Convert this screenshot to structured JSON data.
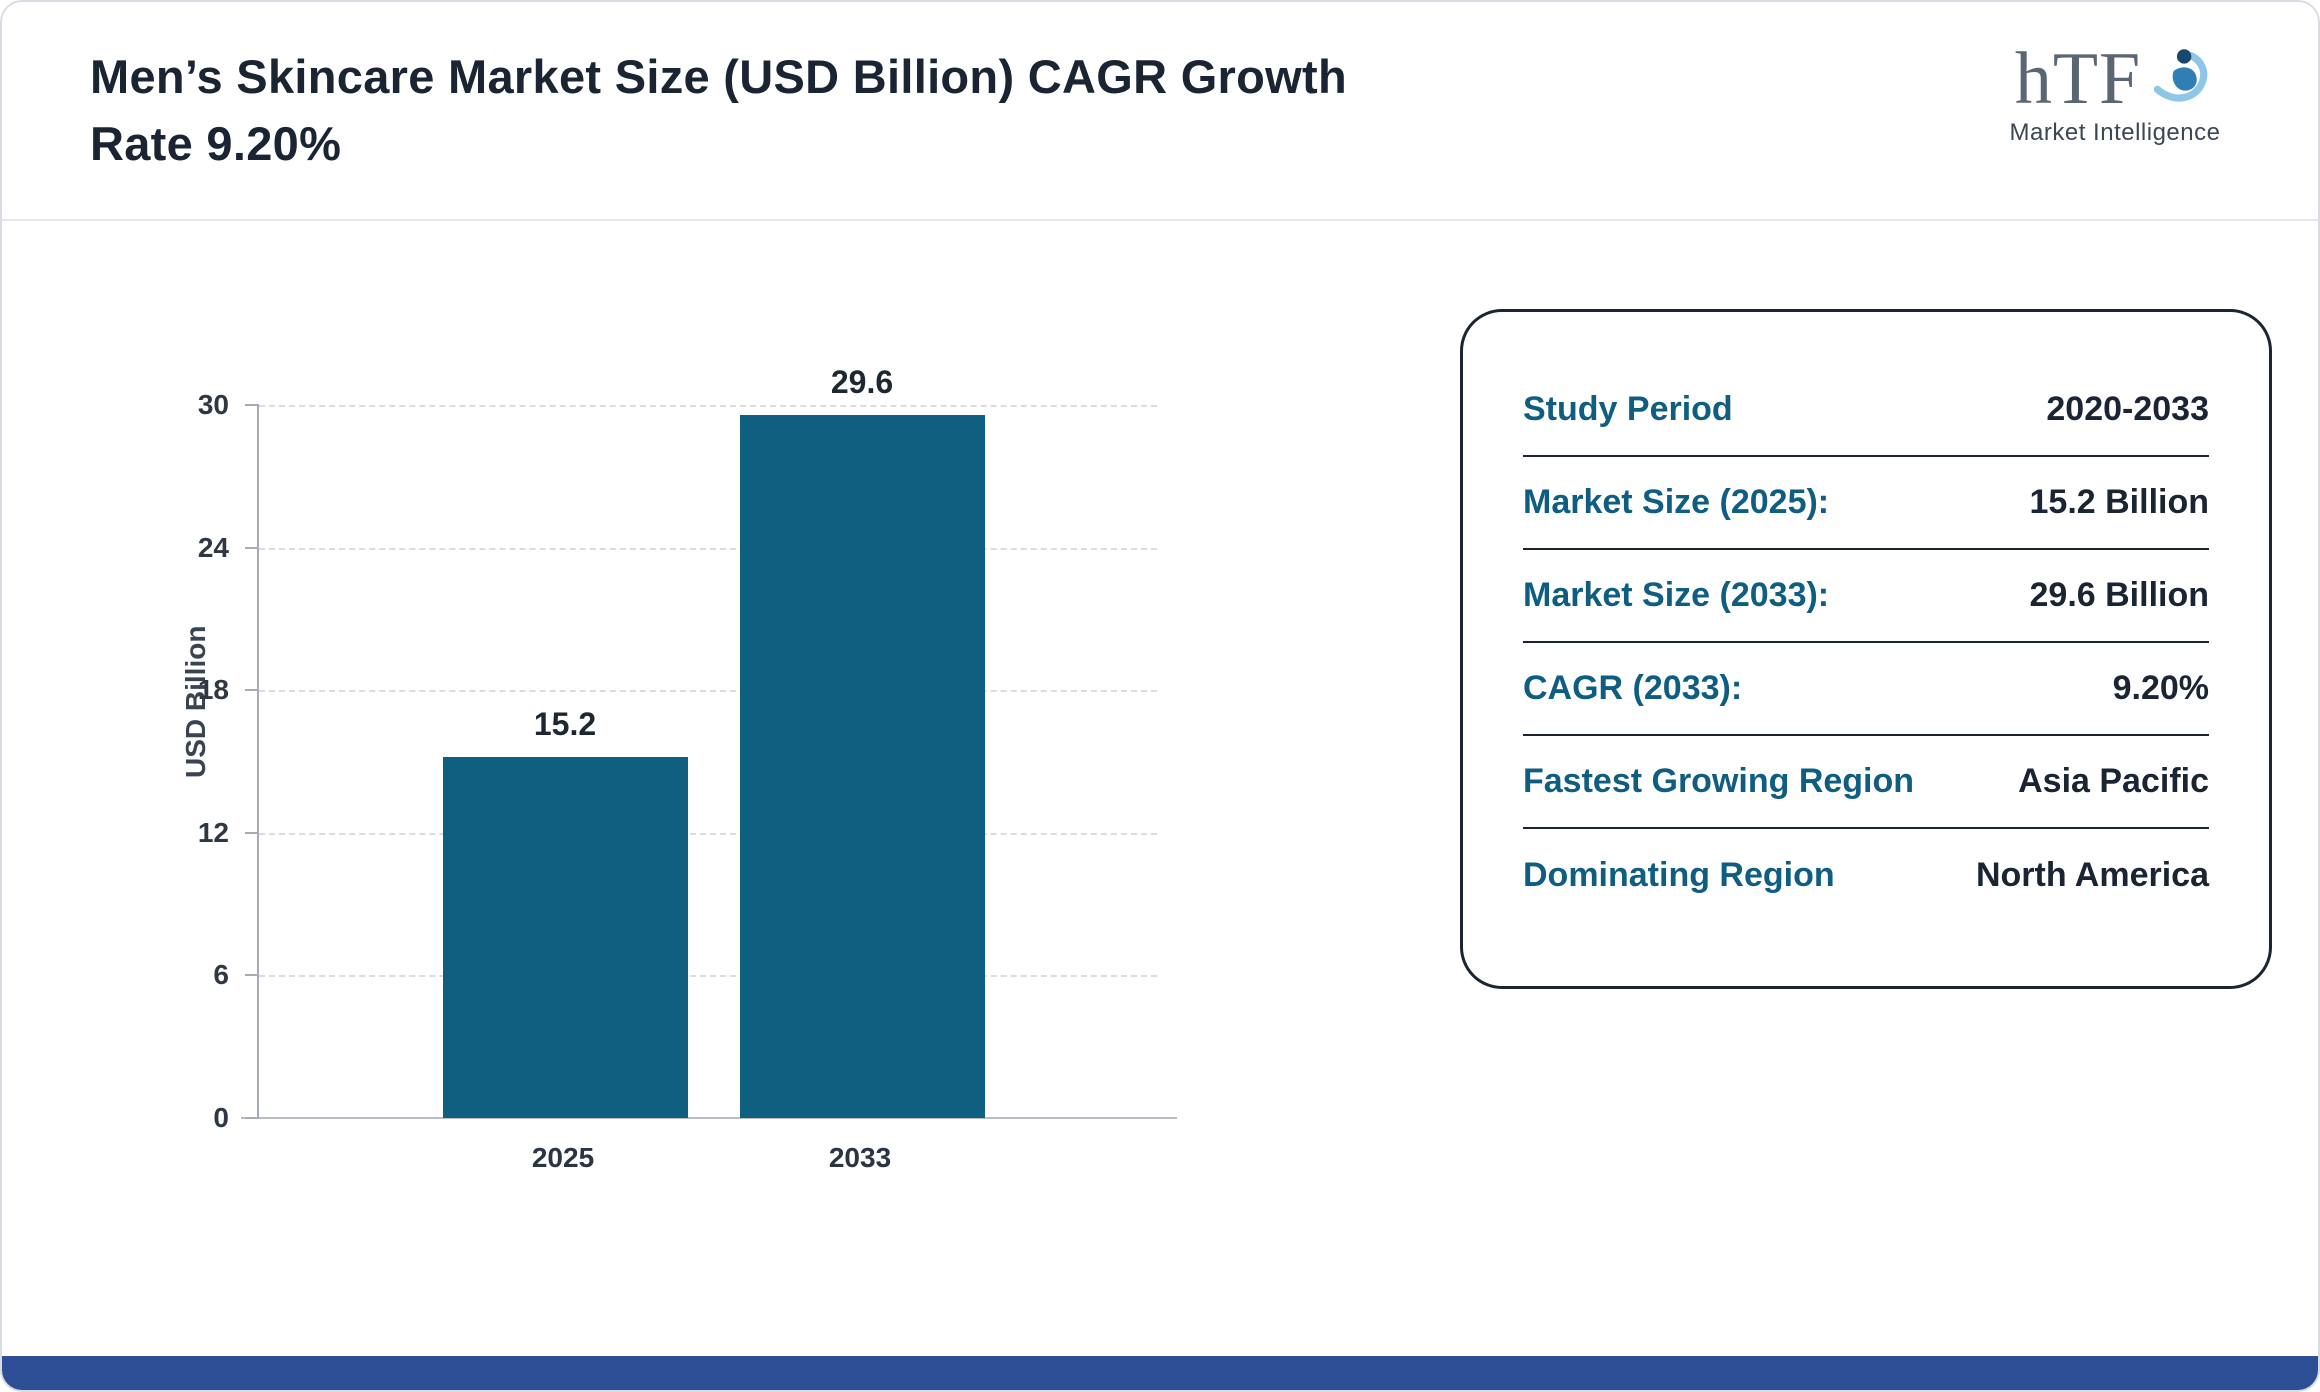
{
  "header": {
    "title": "Men’s Skincare Market Size (USD Billion) CAGR Growth Rate 9.20%",
    "logo": {
      "text": "hTF",
      "subtext": "Market Intelligence"
    }
  },
  "chart_data": {
    "type": "bar",
    "title": "Men’s Skincare Market Size (USD Billion)",
    "categories": [
      "2025",
      "2033"
    ],
    "values": [
      15.2,
      29.6
    ],
    "data_labels": [
      "15.2",
      "29.6"
    ],
    "xlabel": "",
    "ylabel": "USD Billion",
    "ylim": [
      0,
      30
    ],
    "yticks": [
      0,
      6,
      12,
      18,
      24,
      30
    ],
    "grid": "horizontal-dashed",
    "legend": "none",
    "bar_color": "#0e5f80"
  },
  "info_card": {
    "rows": [
      {
        "label": "Study Period",
        "value": "2020-2033"
      },
      {
        "label": "Market Size (2025):",
        "value": "15.2 Billion"
      },
      {
        "label": "Market Size (2033):",
        "value": "29.6 Billion"
      },
      {
        "label": "CAGR (2033):",
        "value": "9.20%"
      },
      {
        "label": "Fastest Growing Region",
        "value": "Asia Pacific"
      },
      {
        "label": "Dominating Region",
        "value": "North America"
      }
    ]
  },
  "colors": {
    "bar": "#0e5f80",
    "label_teal": "#0f5e82",
    "value_dark": "#1b2433",
    "footer_blue": "#2e4f96"
  }
}
